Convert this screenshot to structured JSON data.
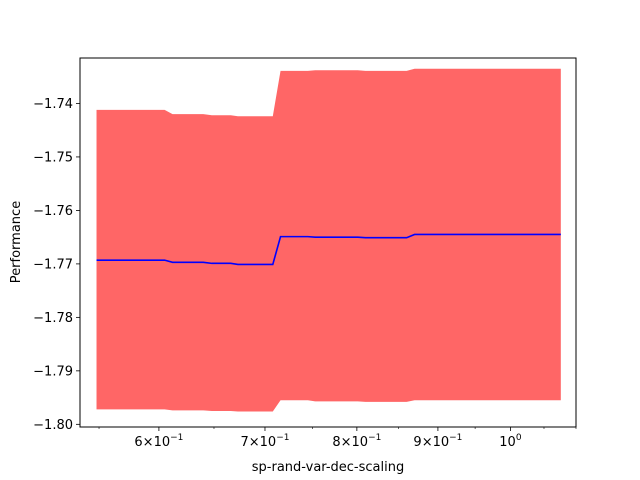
{
  "chart_data": {
    "type": "line",
    "title": "",
    "xlabel": "sp-rand-var-dec-scaling",
    "ylabel": "Performance",
    "xscale": "log",
    "xlim": [
      0.535,
      1.1
    ],
    "ylim": [
      -1.8005,
      -1.7315
    ],
    "grid": false,
    "legend": "none",
    "colors": {
      "line": "#0000ff",
      "band": "#ff6666"
    },
    "x_ticks": [
      {
        "value": 0.6,
        "base": "6",
        "mult": "×10",
        "exp": "−1"
      },
      {
        "value": 0.7,
        "base": "7",
        "mult": "×10",
        "exp": "−1"
      },
      {
        "value": 0.8,
        "base": "8",
        "mult": "×10",
        "exp": "−1"
      },
      {
        "value": 0.9,
        "base": "9",
        "mult": "×10",
        "exp": "−1"
      },
      {
        "value": 1.0,
        "base": "10",
        "mult": "",
        "exp": "0"
      }
    ],
    "y_ticks": [
      {
        "value": -1.74,
        "label": "−1.74"
      },
      {
        "value": -1.75,
        "label": "−1.75"
      },
      {
        "value": -1.76,
        "label": "−1.76"
      },
      {
        "value": -1.77,
        "label": "−1.77"
      },
      {
        "value": -1.78,
        "label": "−1.78"
      },
      {
        "value": -1.79,
        "label": "−1.79"
      },
      {
        "value": -1.8,
        "label": "−1.80"
      }
    ],
    "series": [
      {
        "x": [
          0.548,
          0.605,
          0.612,
          0.64,
          0.648,
          0.666,
          0.673,
          0.708,
          0.716,
          0.745,
          0.753,
          0.801,
          0.81,
          0.86,
          0.87,
          1.076
        ],
        "y": [
          -1.7693,
          -1.7693,
          -1.7697,
          -1.7697,
          -1.7699,
          -1.7699,
          -1.7701,
          -1.7701,
          -1.7649,
          -1.7649,
          -1.765,
          -1.765,
          -1.7651,
          -1.7651,
          -1.7645,
          -1.7645
        ],
        "upper": [
          -1.7412,
          -1.7412,
          -1.742,
          -1.742,
          -1.7422,
          -1.7422,
          -1.7424,
          -1.7424,
          -1.7339,
          -1.7339,
          -1.7338,
          -1.7338,
          -1.7339,
          -1.7339,
          -1.7335,
          -1.7335
        ],
        "lower": [
          -1.7972,
          -1.7972,
          -1.7974,
          -1.7974,
          -1.7975,
          -1.7975,
          -1.7976,
          -1.7976,
          -1.7955,
          -1.7955,
          -1.7957,
          -1.7957,
          -1.7958,
          -1.7958,
          -1.7955,
          -1.7955
        ]
      }
    ]
  }
}
